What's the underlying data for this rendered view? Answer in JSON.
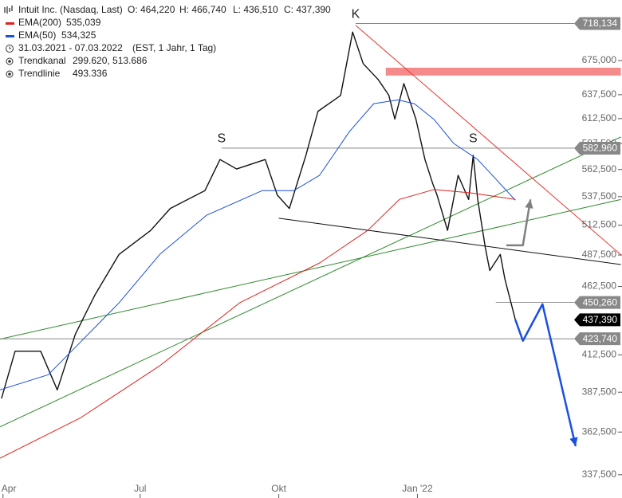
{
  "chart_data": {
    "type": "line",
    "log_scale": true,
    "xlim": [
      "2021-03-30",
      "2022-04-15"
    ],
    "ylim": [
      333.4,
      747
    ],
    "xticks": [
      {
        "value": "2021-04-01",
        "label": "Apr"
      },
      {
        "value": "2021-07-01",
        "label": "Jul"
      },
      {
        "value": "2021-10-01",
        "label": "Okt"
      },
      {
        "value": "2022-01-01",
        "label": "Jan '22"
      }
    ],
    "yticks": [
      {
        "value": 337.5,
        "label": "337,500"
      },
      {
        "value": 362.5,
        "label": "362,500"
      },
      {
        "value": 387.5,
        "label": "387,500"
      },
      {
        "value": 412.5,
        "label": "412,500"
      },
      {
        "value": 462.5,
        "label": "462,500"
      },
      {
        "value": 487.5,
        "label": "487,500"
      },
      {
        "value": 512.5,
        "label": "512,500"
      },
      {
        "value": 537.5,
        "label": "537,500"
      },
      {
        "value": 562.5,
        "label": "562,500"
      },
      {
        "value": 587.5,
        "label": "587,500"
      },
      {
        "value": 612.5,
        "label": "612,500"
      },
      {
        "value": 637.5,
        "label": "637,500"
      },
      {
        "value": 675,
        "label": "675,000"
      }
    ],
    "ohlc": [
      "O: 464,220",
      "H: 466,740",
      "L: 436,510",
      "C: 437,390"
    ],
    "period": "31.03.2021 - 07.03.2022",
    "period_note": "(EST, 1 Jahr, 1 Tag)",
    "series": [
      {
        "name": "Intuit Inc. (Nasdaq, Last)",
        "color": "#111111",
        "x": [
          "2021-03-31",
          "2021-04-09",
          "2021-04-26",
          "2021-05-07",
          "2021-05-19",
          "2021-06-01",
          "2021-06-17",
          "2021-07-08",
          "2021-07-21",
          "2021-08-13",
          "2021-08-23",
          "2021-09-03",
          "2021-09-22",
          "2021-09-30",
          "2021-10-08",
          "2021-10-19",
          "2021-10-27",
          "2021-11-11",
          "2021-11-19",
          "2021-11-26",
          "2021-12-06",
          "2021-12-13",
          "2021-12-17",
          "2021-12-23",
          "2021-12-31",
          "2022-01-06",
          "2022-01-11",
          "2022-01-14",
          "2022-01-21",
          "2022-01-28",
          "2022-02-04",
          "2022-02-07",
          "2022-02-10",
          "2022-02-15",
          "2022-02-18",
          "2022-02-25",
          "2022-02-28",
          "2022-03-07"
        ],
        "values": [
          383.5,
          415,
          415,
          389,
          427,
          456,
          488,
          508,
          527,
          543,
          572,
          563,
          572,
          539,
          527,
          576,
          620,
          636.7,
          708,
          671.6,
          653.8,
          637,
          612,
          649.5,
          612,
          572,
          550,
          539,
          508,
          557,
          535,
          576,
          535,
          494,
          475,
          488,
          468.5,
          437.39
        ]
      },
      {
        "name": "EMA(200)",
        "legend_value": "535,039",
        "color": "#e0201c",
        "x": [
          "2021-03-30",
          "2021-05-22",
          "2021-07-14",
          "2021-09-05",
          "2021-10-28",
          "2021-11-29",
          "2021-12-20",
          "2022-01-12",
          "2022-02-05",
          "2022-03-07"
        ],
        "values": [
          347,
          371,
          405,
          450,
          481,
          508,
          535,
          544,
          541,
          535.04
        ]
      },
      {
        "name": "EMA(50)",
        "legend_value": "534,325",
        "color": "#1a4fe0",
        "x": [
          "2021-03-30",
          "2021-05-01",
          "2021-05-22",
          "2021-06-17",
          "2021-07-14",
          "2021-08-14",
          "2021-09-20",
          "2021-10-11",
          "2021-10-28",
          "2021-11-17",
          "2021-12-03",
          "2021-12-19",
          "2021-12-30",
          "2022-01-12",
          "2022-01-25",
          "2022-02-10",
          "2022-03-07"
        ],
        "values": [
          389,
          399,
          421,
          450,
          488,
          521,
          543,
          543,
          557,
          599.6,
          628,
          632,
          628,
          611.7,
          587.7,
          572,
          534.33
        ]
      }
    ],
    "trend_channel": {
      "name": "Trendkanal",
      "legend_value": "299.620, 513.686",
      "color": "#2e8b2e",
      "lines": [
        [
          [
            "2021-03-30",
            365.7
          ],
          [
            "2022-05-16",
            594
          ]
        ],
        [
          [
            "2021-03-30",
            423.5
          ],
          [
            "2022-05-16",
            535
          ]
        ]
      ]
    },
    "trend_line": {
      "name": "Trendlinie",
      "legend_value": "493.336",
      "color": "#111111",
      "lines": [
        [
          [
            "2021-10-01",
            518.5
          ],
          [
            "2022-05-16",
            479.8
          ]
        ]
      ]
    },
    "resistance_line": {
      "color": "#e8352e",
      "lines": [
        [
          [
            "2021-11-21",
            716
          ],
          [
            "2022-05-16",
            487.7
          ]
        ]
      ]
    },
    "levels": [
      {
        "value": 718.134,
        "label": "718,134",
        "from": "2021-11-21"
      },
      {
        "value": 582.96,
        "label": "582,960",
        "from": "2021-08-24"
      },
      {
        "value": 450.26,
        "label": "450,260",
        "from": "2022-02-22"
      },
      {
        "value": 437.39,
        "label": "437,390",
        "current": true
      },
      {
        "value": 423.74,
        "label": "423,740",
        "from": "2021-03-30"
      }
    ],
    "zone": {
      "from": "2021-12-11",
      "to": "2022-05-16",
      "values": [
        658.3,
        667
      ],
      "color": "#f58a8a"
    },
    "arrows": [
      {
        "color": "#1a4fe0",
        "x": [
          "2022-03-07",
          "2022-03-12",
          "2022-03-25",
          "2022-04-16"
        ],
        "values": [
          437.39,
          422.3,
          449,
          354
        ]
      },
      {
        "color": "#808080",
        "x": [
          "2022-03-01",
          "2022-03-12",
          "2022-03-17"
        ],
        "values": [
          495.5,
          495.5,
          535
        ]
      }
    ],
    "annotations": [
      {
        "text": "K",
        "x": "2021-11-21",
        "y": 729
      },
      {
        "text": "S",
        "x": "2021-08-24",
        "y": 592
      },
      {
        "text": "S",
        "x": "2022-02-07",
        "y": 592
      }
    ]
  }
}
